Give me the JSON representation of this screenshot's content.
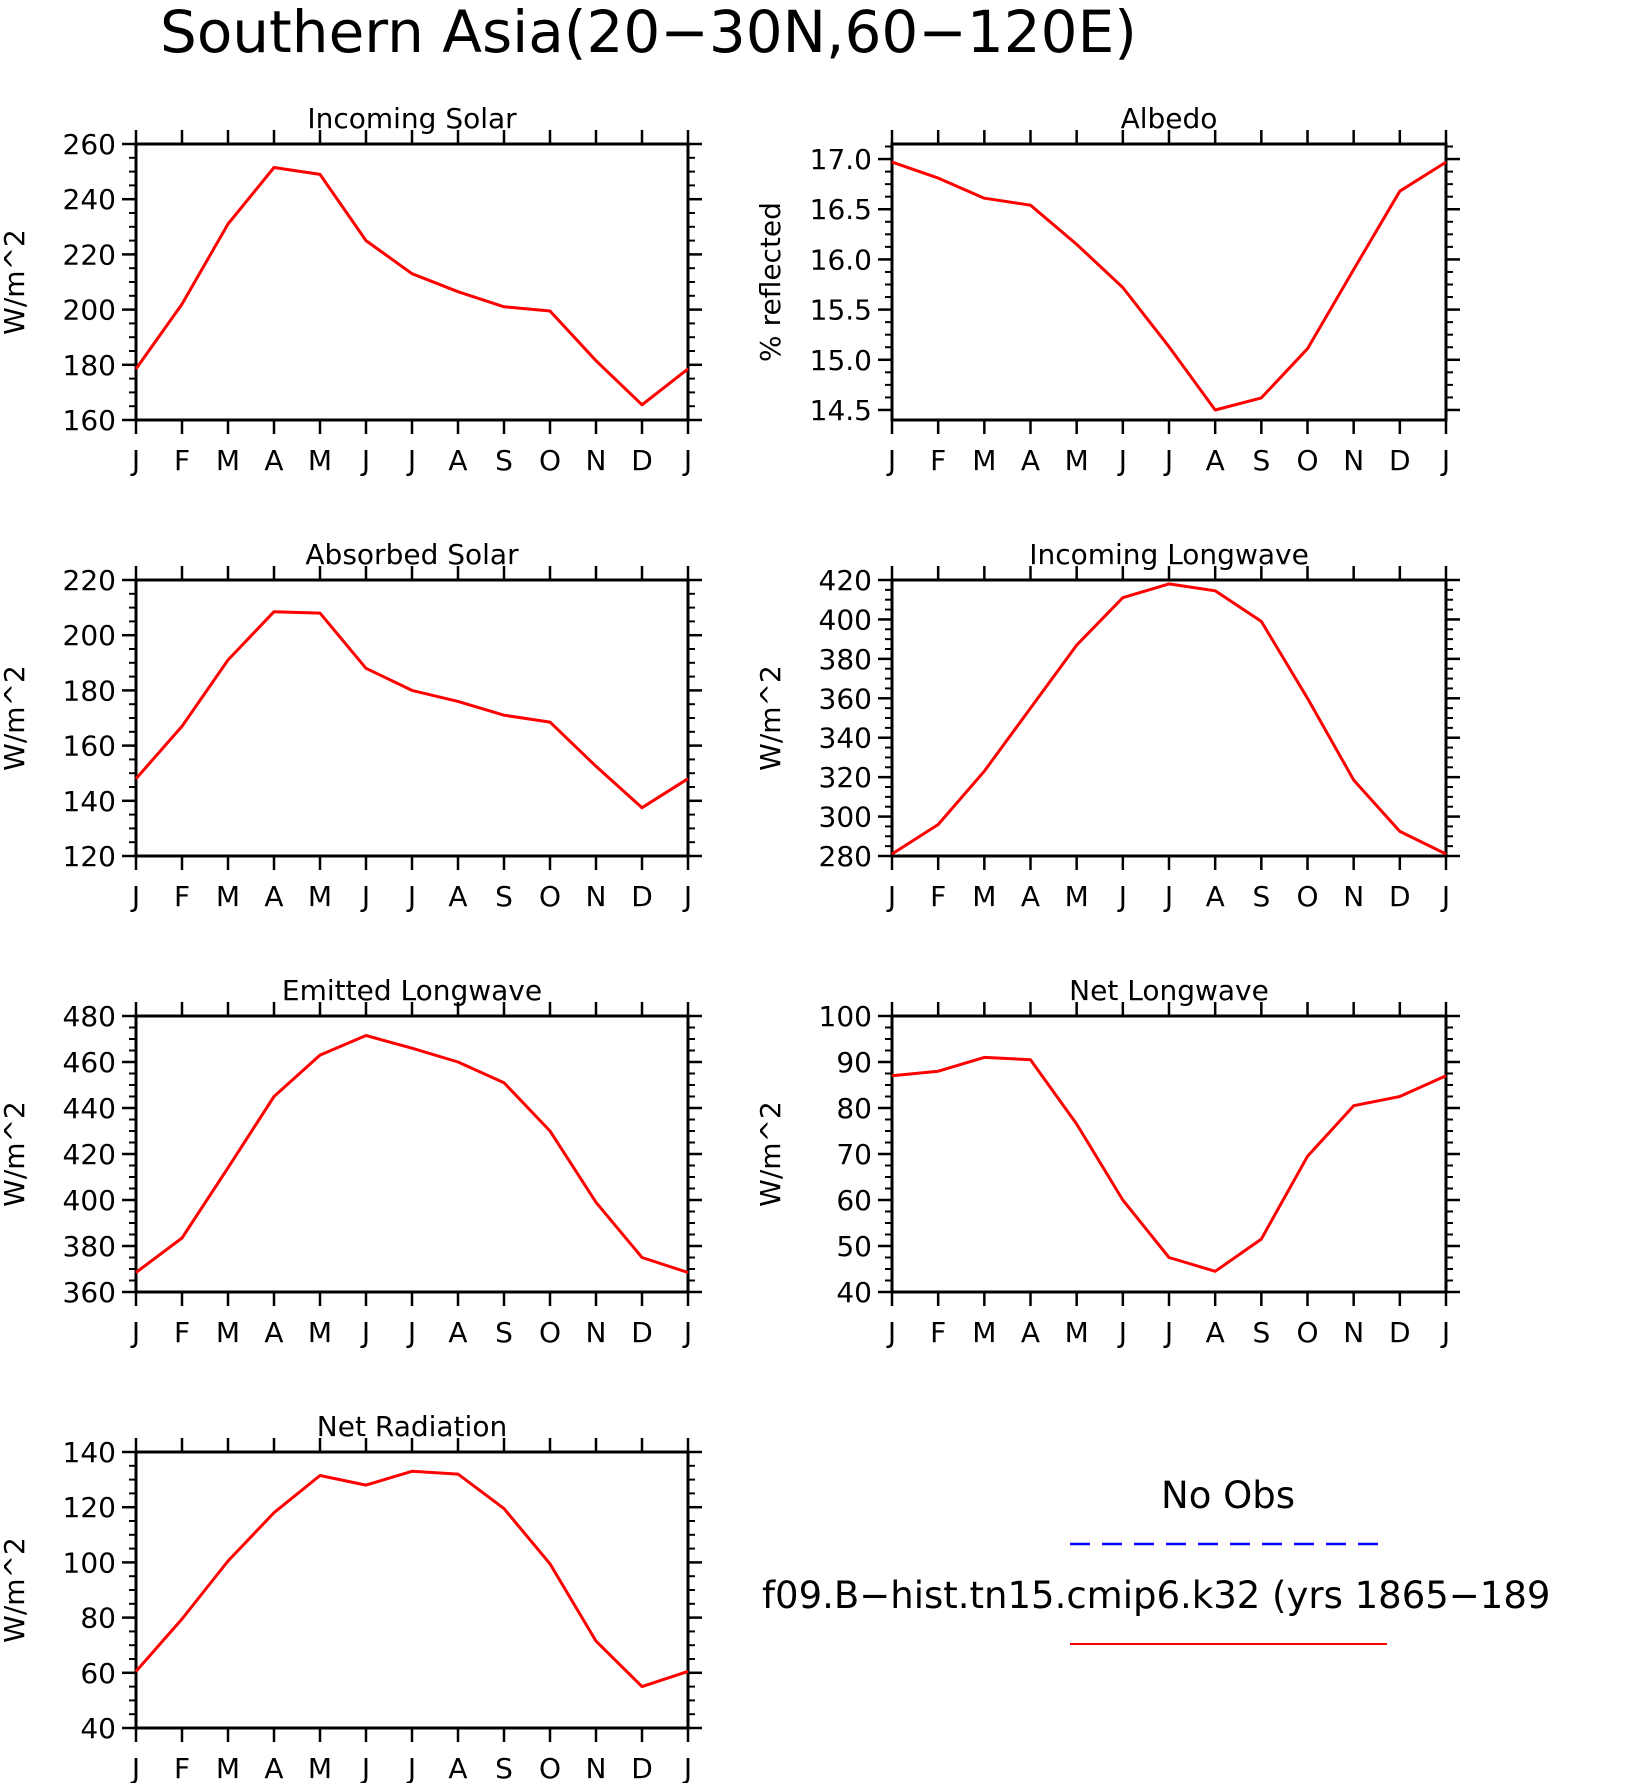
{
  "title": "Southern Asia(20−30N,60−120E)",
  "months": [
    "J",
    "F",
    "M",
    "A",
    "M",
    "J",
    "J",
    "A",
    "S",
    "O",
    "N",
    "D",
    "J"
  ],
  "colors": {
    "model": "#ff0000",
    "obs": "#0000ff",
    "axis": "#000000"
  },
  "legend": {
    "obs_label": "No Obs",
    "model_label": "f09.B−hist.tn15.cmip6.k32 (yrs 1865−189"
  },
  "chart_data": [
    {
      "type": "line",
      "title": "Incoming Solar",
      "ylabel": "W/m^2",
      "ylim": [
        160,
        260
      ],
      "yticks": [
        "160",
        "180",
        "200",
        "220",
        "240",
        "260"
      ],
      "categories": [
        "J",
        "F",
        "M",
        "A",
        "M",
        "J",
        "J",
        "A",
        "S",
        "O",
        "N",
        "D",
        "J"
      ],
      "series": [
        {
          "values": [
            178.5,
            202,
            231,
            251.5,
            249,
            225,
            213,
            206.5,
            201,
            199.5,
            181.5,
            165.5,
            178.5
          ]
        }
      ]
    },
    {
      "type": "line",
      "title": "Albedo",
      "ylabel": "% reflected",
      "ylim": [
        14.4,
        17.15
      ],
      "yticks": [
        "14.5",
        "15.0",
        "15.5",
        "16.0",
        "16.5",
        "17.0"
      ],
      "categories": [
        "J",
        "F",
        "M",
        "A",
        "M",
        "J",
        "J",
        "A",
        "S",
        "O",
        "N",
        "D",
        "J"
      ],
      "series": [
        {
          "values": [
            16.97,
            16.81,
            16.61,
            16.54,
            16.15,
            15.72,
            15.13,
            14.5,
            14.62,
            15.11,
            15.9,
            16.68,
            16.97
          ]
        }
      ]
    },
    {
      "type": "line",
      "title": "Absorbed Solar",
      "ylabel": "W/m^2",
      "ylim": [
        120,
        220
      ],
      "yticks": [
        "120",
        "140",
        "160",
        "180",
        "200",
        "220"
      ],
      "categories": [
        "J",
        "F",
        "M",
        "A",
        "M",
        "J",
        "J",
        "A",
        "S",
        "O",
        "N",
        "D",
        "J"
      ],
      "series": [
        {
          "values": [
            148,
            167,
            191,
            208.5,
            208,
            188,
            180,
            176,
            171,
            168.5,
            152.5,
            137.5,
            148
          ]
        }
      ]
    },
    {
      "type": "line",
      "title": "Incoming Longwave",
      "ylabel": "W/m^2",
      "ylim": [
        280,
        420
      ],
      "yticks": [
        "280",
        "300",
        "320",
        "340",
        "360",
        "380",
        "400",
        "420"
      ],
      "categories": [
        "J",
        "F",
        "M",
        "A",
        "M",
        "J",
        "J",
        "A",
        "S",
        "O",
        "N",
        "D",
        "J"
      ],
      "series": [
        {
          "values": [
            281,
            296,
            323,
            355,
            387,
            411,
            418,
            414.5,
            399,
            360,
            318.5,
            292.5,
            281
          ]
        }
      ]
    },
    {
      "type": "line",
      "title": "Emitted Longwave",
      "ylabel": "W/m^2",
      "ylim": [
        360,
        480
      ],
      "yticks": [
        "360",
        "380",
        "400",
        "420",
        "440",
        "460",
        "480"
      ],
      "categories": [
        "J",
        "F",
        "M",
        "A",
        "M",
        "J",
        "J",
        "A",
        "S",
        "O",
        "N",
        "D",
        "J"
      ],
      "series": [
        {
          "values": [
            368.5,
            383.5,
            414,
            445,
            463,
            471.5,
            466,
            460,
            451,
            430,
            399,
            375,
            368.5
          ]
        }
      ]
    },
    {
      "type": "line",
      "title": "Net Longwave",
      "ylabel": "W/m^2",
      "ylim": [
        40,
        100
      ],
      "yticks": [
        "40",
        "50",
        "60",
        "70",
        "80",
        "90",
        "100"
      ],
      "categories": [
        "J",
        "F",
        "M",
        "A",
        "M",
        "J",
        "J",
        "A",
        "S",
        "O",
        "N",
        "D",
        "J"
      ],
      "series": [
        {
          "values": [
            87,
            88,
            91,
            90.5,
            76.5,
            60,
            47.5,
            44.5,
            51.5,
            69.5,
            80.5,
            82.5,
            87
          ]
        }
      ]
    },
    {
      "type": "line",
      "title": "Net Radiation",
      "ylabel": "W/m^2",
      "ylim": [
        40,
        140
      ],
      "yticks": [
        "40",
        "60",
        "80",
        "100",
        "120",
        "140"
      ],
      "categories": [
        "J",
        "F",
        "M",
        "A",
        "M",
        "J",
        "J",
        "A",
        "S",
        "O",
        "N",
        "D",
        "J"
      ],
      "series": [
        {
          "values": [
            60.5,
            79.5,
            100.5,
            118,
            131.5,
            128,
            133,
            132,
            119.5,
            99.5,
            71.5,
            55,
            60.5
          ]
        }
      ]
    }
  ]
}
